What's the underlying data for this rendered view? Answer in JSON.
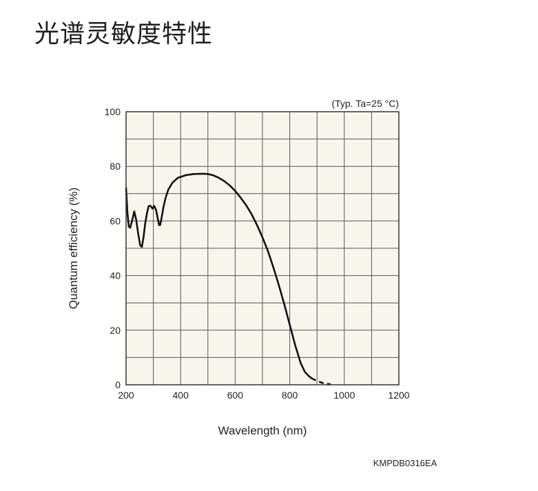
{
  "page": {
    "title": "光谱灵敏度特性"
  },
  "chart_data": {
    "type": "line",
    "title": "",
    "condition_note": "(Typ. Ta=25 °C)",
    "xlabel": "Wavelength (nm)",
    "ylabel": "Quantum efficiency (%)",
    "xlim": [
      200,
      1200
    ],
    "ylim": [
      0,
      100
    ],
    "xticks": [
      "200",
      "400",
      "600",
      "800",
      "1000",
      "1200"
    ],
    "yticks": [
      "0",
      "20",
      "40",
      "60",
      "80",
      "100"
    ],
    "grid": true,
    "figure_code": "KMPDB0316EA",
    "colors": {
      "background": "#f7f6ec",
      "grid": "#555555",
      "line": "#111111"
    },
    "series": [
      {
        "style": "solid",
        "points": [
          [
            200,
            72
          ],
          [
            205,
            63
          ],
          [
            210,
            58
          ],
          [
            215,
            57.5
          ],
          [
            222,
            60
          ],
          [
            230,
            63.5
          ],
          [
            237,
            60.5
          ],
          [
            245,
            55
          ],
          [
            252,
            51
          ],
          [
            258,
            50.5
          ],
          [
            264,
            54
          ],
          [
            270,
            59
          ],
          [
            277,
            63
          ],
          [
            283,
            65.5
          ],
          [
            290,
            65.5
          ],
          [
            297,
            64.5
          ],
          [
            303,
            65.5
          ],
          [
            310,
            64
          ],
          [
            316,
            61
          ],
          [
            321,
            58.5
          ],
          [
            325,
            58.5
          ],
          [
            330,
            61
          ],
          [
            337,
            65
          ],
          [
            345,
            68.5
          ],
          [
            355,
            71.5
          ],
          [
            370,
            74
          ],
          [
            390,
            75.8
          ],
          [
            420,
            76.8
          ],
          [
            450,
            77.2
          ],
          [
            480,
            77.3
          ],
          [
            500,
            77.2
          ],
          [
            520,
            76.7
          ],
          [
            540,
            75.8
          ],
          [
            560,
            74.6
          ],
          [
            580,
            73
          ],
          [
            600,
            71
          ],
          [
            620,
            68.5
          ],
          [
            640,
            65.8
          ],
          [
            660,
            62.5
          ],
          [
            680,
            58.5
          ],
          [
            700,
            54
          ],
          [
            720,
            49
          ],
          [
            740,
            43
          ],
          [
            760,
            36.5
          ],
          [
            780,
            29.5
          ],
          [
            800,
            22
          ],
          [
            820,
            14.5
          ],
          [
            840,
            8
          ],
          [
            855,
            4.8
          ],
          [
            870,
            3.2
          ],
          [
            880,
            2.4
          ]
        ]
      },
      {
        "style": "dashed",
        "points": [
          [
            880,
            2.4
          ],
          [
            900,
            1.4
          ],
          [
            920,
            0.7
          ],
          [
            940,
            0.3
          ],
          [
            950,
            0.2
          ]
        ]
      }
    ]
  }
}
